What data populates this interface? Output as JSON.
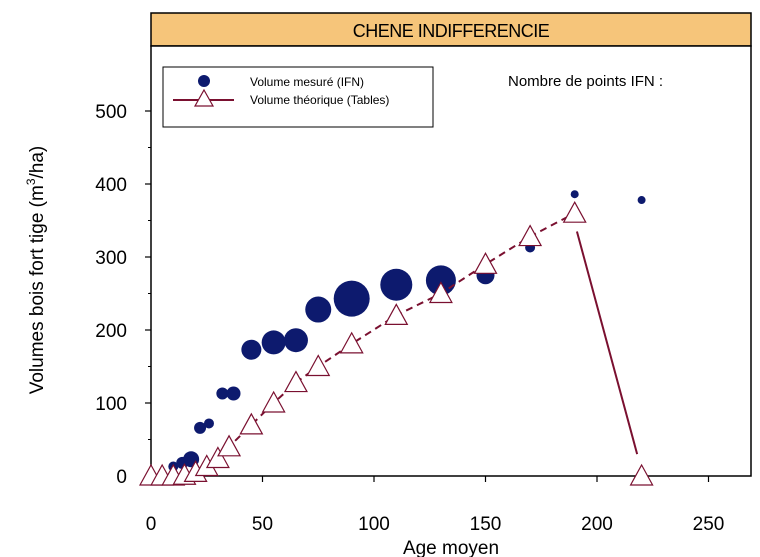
{
  "colors": {
    "measured": "#0d1a6e",
    "theoretical": "#7a1030",
    "banner": "#f6c57a",
    "marker_fill": "#ffffff"
  },
  "chart_data": {
    "type": "scatter",
    "title": "CHENE INDIFFERENCIE",
    "xlabel": "Age moyen",
    "ylabel_main": "Volumes bois fort tige (m",
    "ylabel_sup": "3",
    "ylabel_end": "/ha)",
    "xlim": [
      0,
      270
    ],
    "ylim": [
      0,
      550
    ],
    "xticks": [
      0,
      50,
      100,
      150,
      200,
      250
    ],
    "yticks": [
      0,
      100,
      200,
      300,
      400,
      500
    ],
    "legend_position": "top-left",
    "note": "Nombre de points IFN :",
    "series": [
      {
        "name": "Volume mesuré (IFN)",
        "marker": "circle",
        "points": [
          {
            "x": 10,
            "y": 13,
            "r": 5
          },
          {
            "x": 14,
            "y": 18,
            "r": 6
          },
          {
            "x": 18,
            "y": 23,
            "r": 8
          },
          {
            "x": 22,
            "y": 66,
            "r": 6
          },
          {
            "x": 26,
            "y": 72,
            "r": 5
          },
          {
            "x": 32,
            "y": 113,
            "r": 6
          },
          {
            "x": 37,
            "y": 113,
            "r": 7
          },
          {
            "x": 45,
            "y": 173,
            "r": 10
          },
          {
            "x": 55,
            "y": 183,
            "r": 12
          },
          {
            "x": 65,
            "y": 186,
            "r": 12
          },
          {
            "x": 75,
            "y": 228,
            "r": 13
          },
          {
            "x": 90,
            "y": 243,
            "r": 18
          },
          {
            "x": 110,
            "y": 262,
            "r": 16
          },
          {
            "x": 130,
            "y": 268,
            "r": 15
          },
          {
            "x": 150,
            "y": 275,
            "r": 9
          },
          {
            "x": 170,
            "y": 313,
            "r": 5
          },
          {
            "x": 190,
            "y": 386,
            "r": 4
          },
          {
            "x": 220,
            "y": 378,
            "r": 4
          }
        ]
      },
      {
        "name": "Volume théorique (Tables)",
        "marker": "triangle",
        "line": "dashed",
        "points": [
          {
            "x": 0,
            "y": 0
          },
          {
            "x": 5,
            "y": 0
          },
          {
            "x": 10,
            "y": 0
          },
          {
            "x": 15,
            "y": 1
          },
          {
            "x": 20,
            "y": 5
          },
          {
            "x": 25,
            "y": 13
          },
          {
            "x": 30,
            "y": 24
          },
          {
            "x": 35,
            "y": 40
          },
          {
            "x": 45,
            "y": 70
          },
          {
            "x": 55,
            "y": 100
          },
          {
            "x": 65,
            "y": 128
          },
          {
            "x": 75,
            "y": 150
          },
          {
            "x": 90,
            "y": 181
          },
          {
            "x": 110,
            "y": 220
          },
          {
            "x": 130,
            "y": 250
          },
          {
            "x": 150,
            "y": 290
          },
          {
            "x": 170,
            "y": 328
          },
          {
            "x": 190,
            "y": 360
          },
          {
            "x": 220,
            "y": 0
          }
        ],
        "drop_segment": [
          {
            "x": 191,
            "y": 335
          },
          {
            "x": 218,
            "y": 30
          }
        ]
      }
    ]
  }
}
